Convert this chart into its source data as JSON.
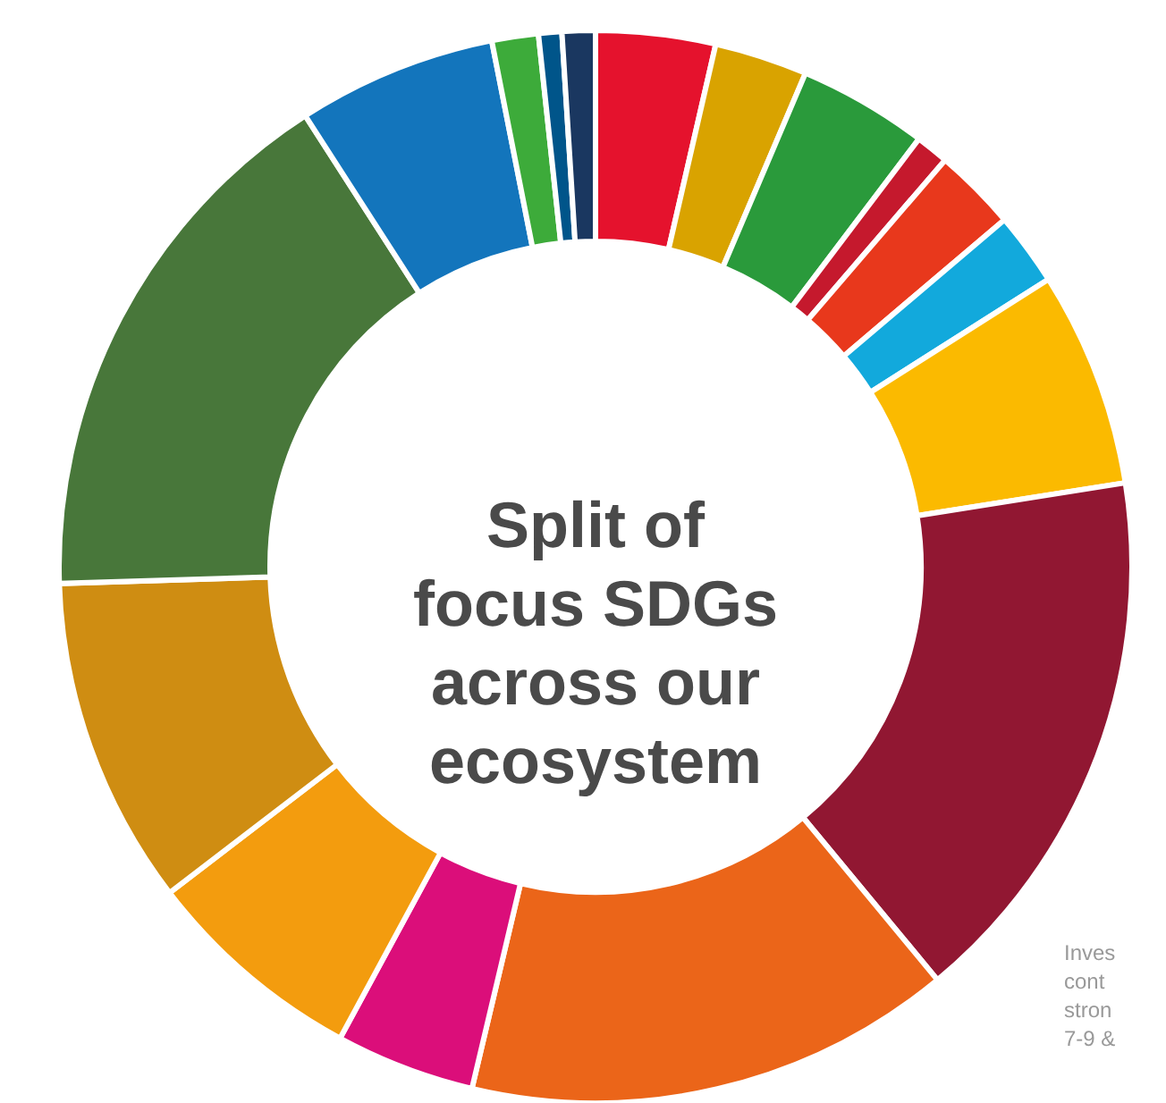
{
  "chart_data": {
    "type": "donut",
    "title": "Split of\nfocus SDGs\nacross our\necosystem",
    "categories": [
      null,
      null,
      null,
      null,
      null,
      null,
      null,
      null,
      null,
      null,
      null,
      null,
      null,
      null,
      null,
      null,
      null
    ],
    "values": [
      3.6,
      2.8,
      3.9,
      1.0,
      2.5,
      2.2,
      6.5,
      16.5,
      14.7,
      4.2,
      6.7,
      9.9,
      16.4,
      6.0,
      1.4,
      0.7,
      1.0
    ],
    "colors": [
      "#e5122d",
      "#d9a300",
      "#2a9a3b",
      "#c5192d",
      "#e8381c",
      "#12a9dc",
      "#fbba00",
      "#911732",
      "#eb6519",
      "#db0e7a",
      "#f39c0e",
      "#cf8d12",
      "#48773a",
      "#1375bc",
      "#3dab3a",
      "#00558a",
      "#1a3760"
    ],
    "annotations": [
      "Inves\ncont\nstron\n7-9 &"
    ],
    "legend": false
  }
}
